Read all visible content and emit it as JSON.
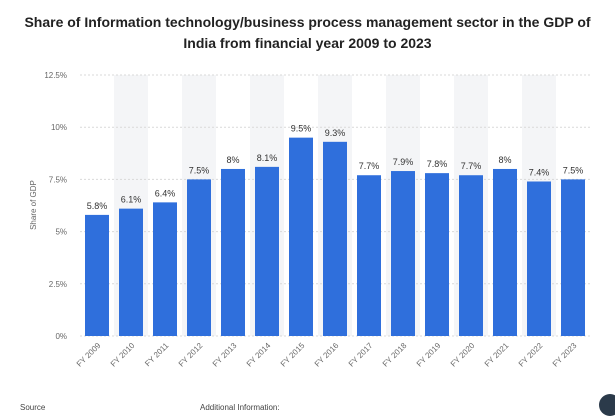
{
  "chart_data": {
    "type": "bar",
    "title": "Share of Information technology/business process management sector in the GDP of India from financial year 2009 to 2023",
    "xlabel": "",
    "ylabel": "Share of GDP",
    "ylim": [
      0,
      12.5
    ],
    "yticks": [
      "0%",
      "2.5%",
      "5%",
      "7.5%",
      "10%",
      "12.5%"
    ],
    "ytick_values": [
      0,
      2.5,
      5,
      7.5,
      10,
      12.5
    ],
    "categories": [
      "FY 2009",
      "FY 2010",
      "FY 2011",
      "FY 2012",
      "FY 2013",
      "FY 2014",
      "FY 2015",
      "FY 2016",
      "FY 2017",
      "FY 2018",
      "FY 2019",
      "FY 2020",
      "FY 2021",
      "FY 2022",
      "FY 2023"
    ],
    "values": [
      5.8,
      6.1,
      6.4,
      7.5,
      8,
      8.1,
      9.5,
      9.3,
      7.7,
      7.9,
      7.8,
      7.7,
      8,
      7.4,
      7.5
    ],
    "data_labels": [
      "5.8%",
      "6.1%",
      "6.4%",
      "7.5%",
      "8%",
      "8.1%",
      "9.5%",
      "9.3%",
      "7.7%",
      "7.9%",
      "7.8%",
      "7.7%",
      "8%",
      "7.4%",
      "7.5%"
    ],
    "grid": true,
    "bar_color": "#2f6fdc",
    "alt_band_color": "#f4f5f7"
  },
  "footer": {
    "source_label": "Source",
    "info_label": "Additional Information:"
  }
}
